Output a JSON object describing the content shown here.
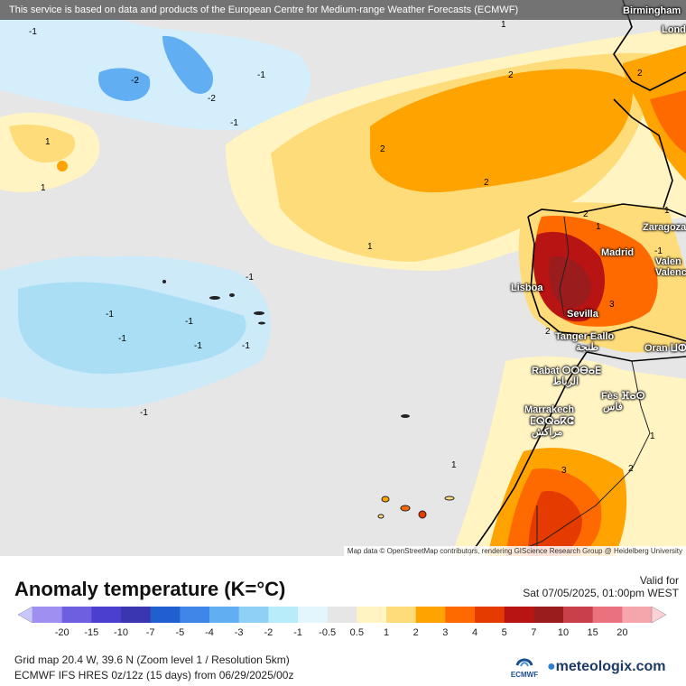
{
  "banner": "This service is based on data and products of the European Centre for Medium-range Weather Forecasts (ECMWF)",
  "map": {
    "attribution": "Map data © OpenStreetMap contributors, rendering GIScience Research Group @ Heidelberg University",
    "cities": [
      {
        "name": "Birmingham"
      },
      {
        "name": "Lond"
      },
      {
        "name": "Zaragoza"
      },
      {
        "name": "Madrid"
      },
      {
        "name": "Valen"
      },
      {
        "name": "Valenc"
      },
      {
        "name": "Lisboa"
      },
      {
        "name": "Sevilla"
      },
      {
        "name": "Tanger Eallo"
      },
      {
        "name": "طنجة"
      },
      {
        "name": "Oran ⵡⵀⵔⴰⵏ"
      },
      {
        "name": "Rabat ⵔⵔⴱⴰⴹ"
      },
      {
        "name": "الرباط"
      },
      {
        "name": "Fès ⴼⴰⵙ"
      },
      {
        "name": "فاس"
      },
      {
        "name": "Marrakech"
      },
      {
        "name": "ⵎⵕⵕⴰⴽⵛ"
      },
      {
        "name": "مراكش"
      }
    ],
    "contour_labels": [
      "-1",
      "-2",
      "-1",
      "-2",
      "-1",
      "1",
      "1",
      "1",
      "2",
      "2",
      "1",
      "2",
      "2",
      "1",
      "-1",
      "-1",
      "-1",
      "-1",
      "-1",
      "-1",
      "-1",
      "-1",
      "1",
      "2",
      "3",
      "1",
      "2",
      "3",
      "2",
      "1"
    ]
  },
  "legend": {
    "title": "Anomaly temperature (K=°C)",
    "valid_label": "Valid for",
    "valid_date": "Sat 07/05/2025, 01:00pm WEST",
    "ticks": [
      "-20",
      "-15",
      "-10",
      "-7",
      "-5",
      "-4",
      "-3",
      "-2",
      "-1",
      "-0.5",
      "0.5",
      "1",
      "2",
      "3",
      "4",
      "5",
      "7",
      "10",
      "15",
      "20"
    ],
    "colors": [
      "#c8c8ff",
      "#9f8ff0",
      "#6e5fe0",
      "#4b3fcf",
      "#3a35b0",
      "#1f5fd0",
      "#3f86e8",
      "#62aef2",
      "#8fd0f7",
      "#b9ecfb",
      "#e3f6fd",
      "#e6e6e6",
      "#fff4c2",
      "#ffdc7a",
      "#ffa300",
      "#ff6a00",
      "#e53a00",
      "#b81414",
      "#9a1c1c",
      "#c8404a",
      "#e8737f",
      "#f5a6ad",
      "#fbd0d6"
    ]
  },
  "info": {
    "line1": "Grid map 20.4 W, 39.6 N (Zoom level 1 / Resolution 5km)",
    "line2": "ECMWF IFS HRES 0z/12z (15 days) from  06/29/2025/00z"
  },
  "branding": {
    "ecmwf": "ECMWF",
    "meteologix": "meteologix.com"
  }
}
